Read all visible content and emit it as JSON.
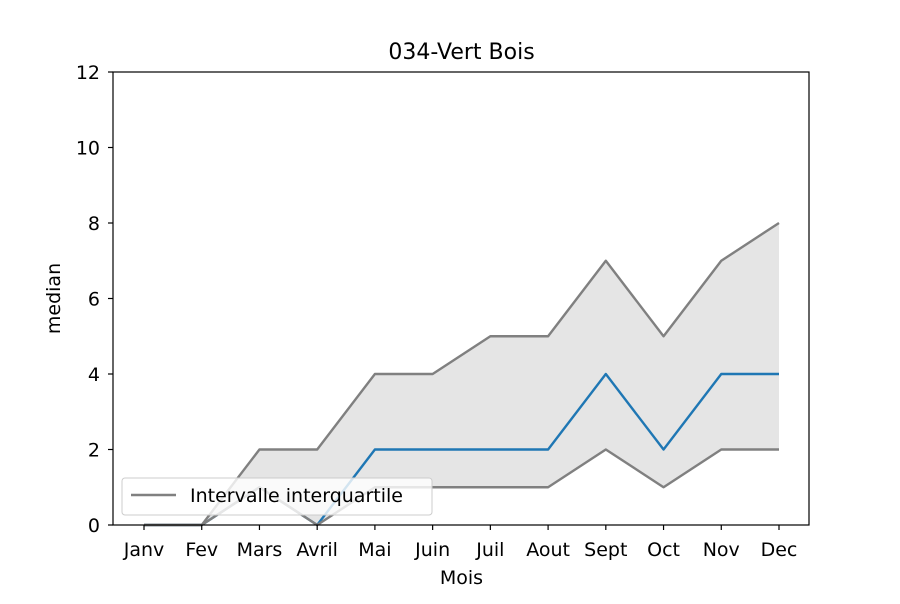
{
  "chart_data": {
    "type": "line",
    "title": "034-Vert Bois",
    "xlabel": "Mois",
    "ylabel": "median",
    "categories": [
      "Janv",
      "Fev",
      "Mars",
      "Avril",
      "Mai",
      "Juin",
      "Juil",
      "Aout",
      "Sept",
      "Oct",
      "Nov",
      "Dec"
    ],
    "ylim": [
      0,
      12
    ],
    "yticks": [
      0,
      2,
      4,
      6,
      8,
      10,
      12
    ],
    "grid": false,
    "legend_position": "lower-left",
    "series": [
      {
        "values": [
          0,
          0,
          1,
          0,
          2,
          2,
          2,
          2,
          4,
          2,
          4,
          4
        ],
        "color": "#1f77b4"
      },
      {
        "name": "Intervalle interquartile",
        "role": "upper-quartile",
        "values": [
          0,
          0,
          2,
          2,
          4,
          4,
          5,
          5,
          7,
          5,
          7,
          8
        ],
        "color": "#808080"
      },
      {
        "role": "lower-quartile",
        "values": [
          0,
          0,
          1,
          0,
          1,
          1,
          1,
          1,
          2,
          1,
          2,
          2
        ],
        "color": "#808080"
      }
    ],
    "band_fill_color": "#e5e5e5"
  }
}
